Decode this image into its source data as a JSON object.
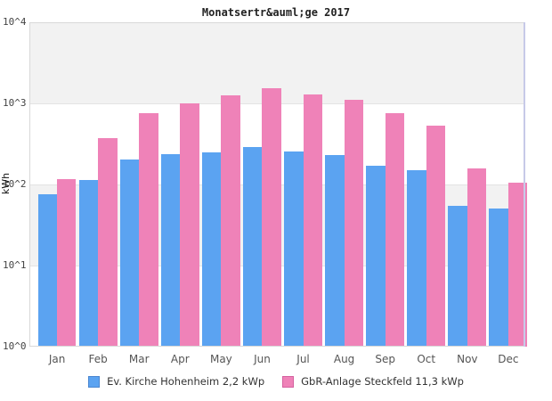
{
  "chart_data": {
    "type": "bar",
    "title": "Monatsertr&auml;ge 2017",
    "ylabel": "kWh",
    "xlabel": "",
    "yscale": "log",
    "ylim": [
      1,
      10000
    ],
    "yticks": [
      "10^0",
      "10^1",
      "10^2",
      "10^3",
      "10^4"
    ],
    "categories": [
      "Jan",
      "Feb",
      "Mar",
      "Apr",
      "May",
      "Jun",
      "Jul",
      "Aug",
      "Sep",
      "Oct",
      "Nov",
      "Dec"
    ],
    "series": [
      {
        "name": "Ev. Kirche Hohenheim 2,2 kWp",
        "color": "#5ba3f1",
        "swatch_border": "#4a86d0",
        "values": [
          75,
          114,
          201,
          234,
          250,
          293,
          258,
          229,
          170,
          151,
          54,
          51
        ]
      },
      {
        "name": "GbR-Anlage Steckfeld 11,3 kWp",
        "color": "#ef82b8",
        "swatch_border": "#d5619f",
        "values": [
          117,
          370,
          755,
          1010,
          1250,
          1550,
          1300,
          1120,
          750,
          535,
          156,
          104
        ]
      }
    ],
    "legend_position": "bottom",
    "grid": "alternating-decade-bands",
    "band_color": "#f2f2f2",
    "gridline_color": "#e3e3e3",
    "axis_border_color": "#d8d8d8",
    "right_border_color": "#c7cae8"
  }
}
